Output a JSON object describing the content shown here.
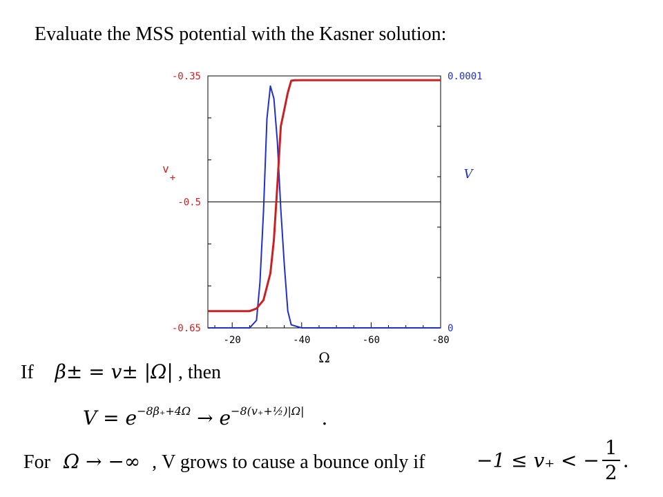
{
  "slide": {
    "title": "Evaluate the MSS potential with the Kasner solution:",
    "if_prefix": "If",
    "if_math": "β± = v± |Ω|",
    "if_suffix": ", then",
    "v_lhs": "V = e",
    "v_exp1": "−8β₊+4Ω",
    "v_arrow": "→ e",
    "v_exp2": "−8(v₊+½)|Ω|",
    "v_period": ".",
    "for_prefix": "For",
    "for_math": "Ω → −∞",
    "for_middle": ", V grows to cause a bounce only if",
    "cond_lhs": "−1 ≤ v₊ < −",
    "cond_num": "1",
    "cond_den": "2",
    "cond_end": "."
  },
  "colors": {
    "series_vplus": "#cc1f1f",
    "series_V": "#1f2fcc",
    "left_axis_labels": "#cc1f1f",
    "right_axis_labels": "#1f2fcc"
  },
  "chart_data": {
    "type": "line",
    "xlabel": "Ω",
    "x_ticks": [
      "-20",
      "-40",
      "-60",
      "-80"
    ],
    "x_range": [
      -13,
      -80
    ],
    "left_axis": {
      "label_main": "v",
      "label_sub": "+",
      "ticks": [
        "-0.35",
        "-0.5",
        "-0.65"
      ],
      "range": [
        -0.65,
        -0.35
      ]
    },
    "right_axis": {
      "label": "V",
      "ticks": [
        "0.0001",
        "0"
      ],
      "range": [
        0,
        0.0001
      ]
    },
    "horizontal_rule_at": -0.5,
    "series": [
      {
        "name": "v₊",
        "axis": "left",
        "color": "#cc1f1f",
        "x": [
          -13,
          -25,
          -27,
          -29,
          -31,
          -32,
          -33,
          -34,
          -35,
          -36,
          -37,
          -38,
          -40,
          -50,
          -60,
          -70,
          -80
        ],
        "y": [
          -0.63,
          -0.63,
          -0.627,
          -0.617,
          -0.585,
          -0.545,
          -0.48,
          -0.41,
          -0.39,
          -0.37,
          -0.3557,
          -0.3552,
          -0.355,
          -0.355,
          -0.355,
          -0.355,
          -0.355
        ]
      },
      {
        "name": "V",
        "axis": "right",
        "color": "#1f2fcc",
        "x": [
          -13,
          -25,
          -27,
          -28,
          -29,
          -30,
          -31,
          -32,
          -33,
          -34,
          -35,
          -36,
          -37,
          -40,
          -50,
          -60,
          -70,
          -80
        ],
        "y": [
          0,
          0,
          3e-06,
          1.8e-05,
          4.6e-05,
          8.3e-05,
          9.6e-05,
          9.1e-05,
          7.4e-05,
          4.7e-05,
          2.5e-05,
          6.7e-06,
          1.2e-06,
          0,
          0,
          0,
          0,
          0
        ]
      }
    ]
  }
}
